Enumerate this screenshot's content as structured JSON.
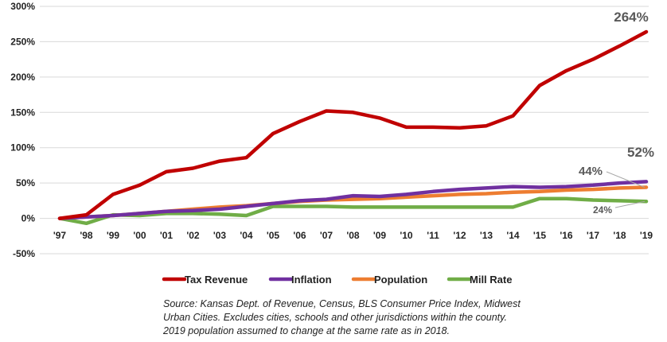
{
  "chart_data": {
    "type": "line",
    "x": [
      "'97",
      "'98",
      "'99",
      "'00",
      "'01",
      "'02",
      "'03",
      "'04",
      "'05",
      "'06",
      "'07",
      "'08",
      "'09",
      "'10",
      "'11",
      "'12",
      "'13",
      "'14",
      "'15",
      "'16",
      "'17",
      "'18",
      "'19"
    ],
    "ylim": [
      -50,
      300
    ],
    "y_ticks": [
      "-50%",
      "0%",
      "50%",
      "100%",
      "150%",
      "200%",
      "250%",
      "300%"
    ],
    "grid": true,
    "legend_position": "bottom",
    "series": [
      {
        "name": "Tax Revenue",
        "color": "#C00000",
        "values": [
          0,
          5,
          34,
          47,
          66,
          71,
          81,
          86,
          120,
          137,
          152,
          150,
          142,
          129,
          129,
          128,
          131,
          145,
          188,
          209,
          225,
          244,
          264
        ]
      },
      {
        "name": "Inflation",
        "color": "#7030A0",
        "values": [
          0,
          2,
          4,
          7,
          10,
          11,
          13,
          17,
          21,
          25,
          27,
          32,
          31,
          34,
          38,
          41,
          43,
          45,
          44,
          45,
          47,
          50,
          52
        ]
      },
      {
        "name": "Population",
        "color": "#ED7D31",
        "values": [
          0,
          2,
          4,
          7,
          10,
          13,
          16,
          18,
          21,
          24,
          26,
          27,
          28,
          30,
          32,
          34,
          35,
          37,
          38,
          40,
          41,
          43,
          44
        ]
      },
      {
        "name": "Mill Rate",
        "color": "#70AD47",
        "values": [
          0,
          -7,
          5,
          4,
          7,
          7,
          6,
          4,
          17,
          17,
          17,
          16,
          16,
          16,
          16,
          16,
          16,
          16,
          28,
          28,
          26,
          25,
          24
        ]
      }
    ],
    "annotations": [
      {
        "text": "264%",
        "series": "Tax Revenue"
      },
      {
        "text": "52%",
        "series": "Inflation"
      },
      {
        "text": "44%",
        "series": "Population"
      },
      {
        "text": "24%",
        "series": "Mill Rate"
      }
    ]
  },
  "source_lines": [
    "Source: Kansas Dept. of Revenue, Census, BLS Consumer Price Index, Midwest",
    "Urban Cities.  Excludes cities, schools and other jurisdictions within the county.",
    "2019 population assumed to change at the same rate as in 2018."
  ]
}
